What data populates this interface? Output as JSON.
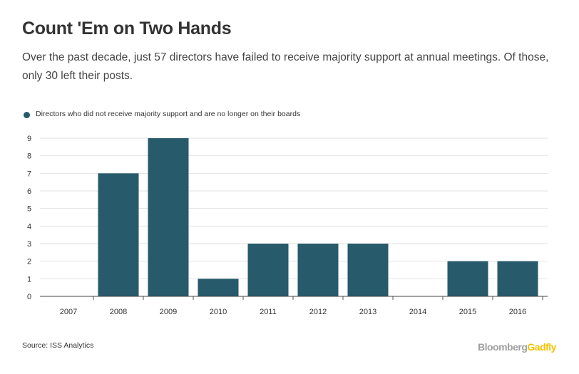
{
  "title": "Count 'Em on Two Hands",
  "subtitle": "Over the past decade, just 57 directors have failed to receive majority support at annual meetings. Of those, only 30 left their posts.",
  "source": "Source: ISS Analytics",
  "logo": {
    "part1": "Bloomberg",
    "part2": "Gadfly"
  },
  "chart_data": {
    "type": "bar",
    "categories": [
      "2007",
      "2008",
      "2009",
      "2010",
      "2011",
      "2012",
      "2013",
      "2014",
      "2015",
      "2016"
    ],
    "series": [
      {
        "name": "Directors who did not receive majority support and are no longer on their boards",
        "values": [
          0,
          7,
          9,
          1,
          3,
          3,
          3,
          0,
          2,
          2
        ],
        "color": "#275a6b"
      }
    ],
    "ylim": [
      0,
      9
    ],
    "yticks": [
      0,
      1,
      2,
      3,
      4,
      5,
      6,
      7,
      8,
      9
    ],
    "grid": true,
    "legend": "top-left"
  }
}
